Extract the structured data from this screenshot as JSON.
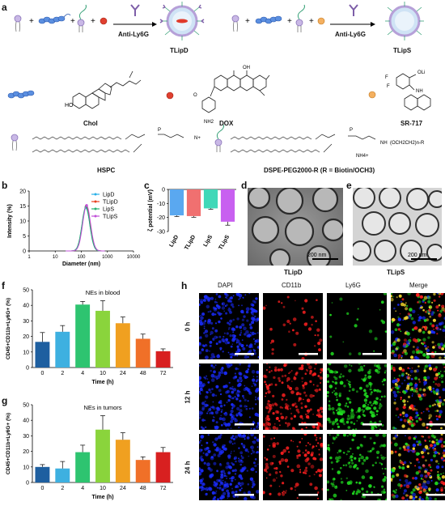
{
  "panel_labels": {
    "a": "a",
    "b": "b",
    "c": "c",
    "d": "d",
    "e": "e",
    "f": "f",
    "g": "g",
    "h": "h"
  },
  "panel_a": {
    "plus": "+",
    "antibody_label": "Anti-Ly6G",
    "product1": "TLipD",
    "product2": "TLipS",
    "chol_label": "Chol",
    "dox_label": "DOX",
    "sr_label": "SR-717",
    "hspc_label": "HSPC",
    "dspe_label": "DSPE-PEG2000-R (R = Biotin/OCH3)",
    "chem": {
      "ho": "HO",
      "oh": "OH",
      "o": "O",
      "nh2": "NH2",
      "nh": "NH",
      "nh4": "NH4+",
      "f": "F",
      "oli": "OLi",
      "n": "N",
      "p": "P",
      "peg": "(OCH2CH2)n-R",
      "me3": "N+"
    }
  },
  "chart_data": [
    {
      "type": "line",
      "panel": "b",
      "xlabel": "Diameter (nm)",
      "ylabel": "Intensity (%)",
      "xscale": "log",
      "xlim": [
        1,
        10000
      ],
      "ylim": [
        0,
        20
      ],
      "xticks": [
        "1",
        "10",
        "100",
        "1000",
        "10000"
      ],
      "yticks": [
        "0",
        "5",
        "10",
        "15",
        "20"
      ],
      "legend_position": "top-right",
      "series": [
        {
          "name": "LipD",
          "color": "#28b0e8",
          "peak_x": 150,
          "peak_y": 14.4
        },
        {
          "name": "TLipD",
          "color": "#e8401f",
          "peak_x": 155,
          "peak_y": 15.0
        },
        {
          "name": "LipS",
          "color": "#28b070",
          "peak_x": 150,
          "peak_y": 14.7
        },
        {
          "name": "TLipS",
          "color": "#c04fd8",
          "peak_x": 160,
          "peak_y": 15.2
        }
      ]
    },
    {
      "type": "bar",
      "panel": "c",
      "ylabel": "ζ potential (mV)",
      "ylim": [
        -30,
        0
      ],
      "yticks": [
        "0",
        "-10",
        "-20",
        "-30"
      ],
      "categories": [
        "LipD",
        "TLipD",
        "LipS",
        "TLipS"
      ],
      "values": [
        -18.5,
        -19.0,
        -13.5,
        -23.0
      ],
      "errors": [
        0.8,
        0.8,
        0.6,
        2.5
      ],
      "colors": [
        "#5aa8f0",
        "#f07070",
        "#40d8b8",
        "#c860f0"
      ]
    },
    {
      "type": "bar",
      "panel": "f",
      "title": "NEs in blood",
      "xlabel": "Time (h)",
      "ylabel": "CD45+CD11b+Ly6G+ (%)",
      "ylim": [
        0,
        50
      ],
      "yticks": [
        "0",
        "10",
        "20",
        "30",
        "40",
        "50"
      ],
      "categories": [
        "0",
        "2",
        "4",
        "10",
        "24",
        "48",
        "72"
      ],
      "values": [
        16.5,
        23.0,
        40.5,
        36.5,
        28.5,
        18.5,
        10.5
      ],
      "errors": [
        6.0,
        4.0,
        2.0,
        6.5,
        4.0,
        3.0,
        1.5
      ],
      "colors": [
        "#1e5fa0",
        "#3eb0e0",
        "#2ec470",
        "#8ad43c",
        "#f0a020",
        "#f07028",
        "#d82020"
      ]
    },
    {
      "type": "bar",
      "panel": "g",
      "title": "NEs in tumors",
      "xlabel": "Time (h)",
      "ylabel": "CD45+CD11b+Ly6G+ (%)",
      "ylim": [
        0,
        50
      ],
      "yticks": [
        "0",
        "10",
        "20",
        "30",
        "40",
        "50"
      ],
      "categories": [
        "0",
        "2",
        "4",
        "10",
        "24",
        "48",
        "72"
      ],
      "values": [
        10.0,
        9.0,
        19.5,
        34.0,
        27.5,
        14.5,
        19.5
      ],
      "errors": [
        1.5,
        4.5,
        4.5,
        9.0,
        4.5,
        2.0,
        3.0
      ],
      "colors": [
        "#1e5fa0",
        "#3eb0e0",
        "#2ec470",
        "#8ad43c",
        "#f0a020",
        "#f07028",
        "#d82020"
      ]
    }
  ],
  "panel_d": {
    "scale": "200 nm",
    "caption": "TLipD"
  },
  "panel_e": {
    "scale": "200 nm",
    "caption": "TLipS"
  },
  "panel_h": {
    "columns": [
      "DAPI",
      "CD11b",
      "Ly6G",
      "Merge"
    ],
    "rows": [
      "0 h",
      "12 h",
      "24 h"
    ]
  }
}
